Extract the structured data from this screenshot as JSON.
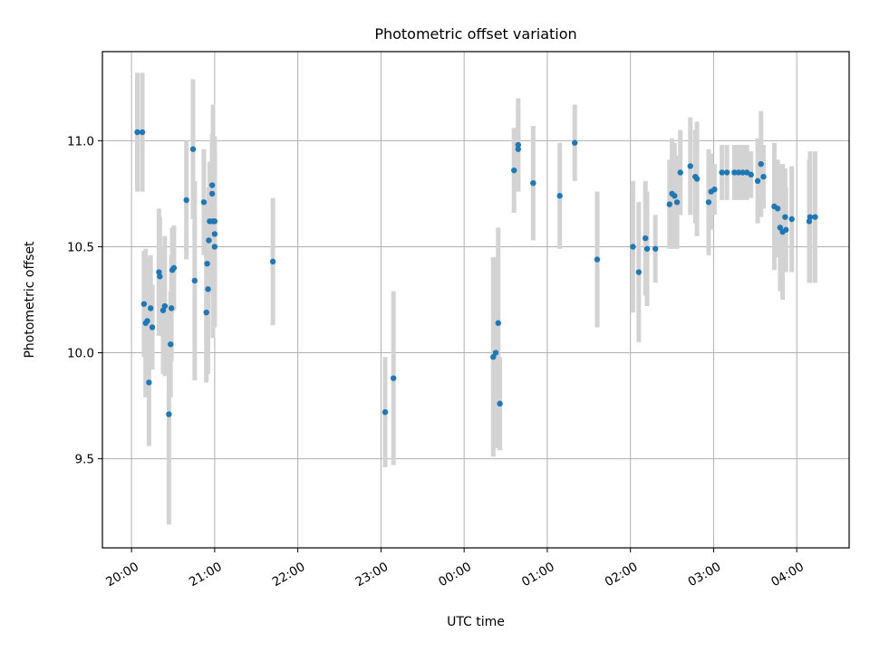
{
  "chart_data": {
    "type": "scatter",
    "title": "Photometric offset variation",
    "xlabel": "UTC time",
    "ylabel": "Photometric offset",
    "x_unit": "UTC hour (continuing past midnight)",
    "xlim": [
      19.65,
      28.63
    ],
    "ylim": [
      9.08,
      11.42
    ],
    "grid": true,
    "x_ticks": [
      {
        "value": 20,
        "label": "20:00"
      },
      {
        "value": 21,
        "label": "21:00"
      },
      {
        "value": 22,
        "label": "22:00"
      },
      {
        "value": 23,
        "label": "23:00"
      },
      {
        "value": 24,
        "label": "00:00"
      },
      {
        "value": 25,
        "label": "01:00"
      },
      {
        "value": 26,
        "label": "02:00"
      },
      {
        "value": 27,
        "label": "03:00"
      },
      {
        "value": 28,
        "label": "04:00"
      }
    ],
    "y_ticks": [
      {
        "value": 9.5,
        "label": "9.5"
      },
      {
        "value": 10.0,
        "label": "10.0"
      },
      {
        "value": 10.5,
        "label": "10.5"
      },
      {
        "value": 11.0,
        "label": "11.0"
      }
    ],
    "marker_color": "#1f77b4",
    "errorbar_color": "#d3d3d3",
    "series": [
      {
        "points": [
          [
            20.07,
            11.04,
            0.28
          ],
          [
            20.13,
            11.04,
            0.28
          ],
          [
            20.15,
            10.23,
            0.25
          ],
          [
            20.17,
            10.14,
            0.35
          ],
          [
            20.19,
            10.15,
            0.3
          ],
          [
            20.21,
            9.86,
            0.3
          ],
          [
            20.23,
            10.21,
            0.25
          ],
          [
            20.25,
            10.12,
            0.2
          ],
          [
            20.33,
            10.38,
            0.3
          ],
          [
            20.34,
            10.36,
            0.28
          ],
          [
            20.38,
            10.2,
            0.3
          ],
          [
            20.4,
            10.22,
            0.33
          ],
          [
            20.45,
            9.71,
            0.52
          ],
          [
            20.47,
            10.04,
            0.25
          ],
          [
            20.48,
            10.21,
            0.25
          ],
          [
            20.49,
            10.39,
            0.2
          ],
          [
            20.51,
            10.4,
            0.2
          ],
          [
            20.66,
            10.72,
            0.28
          ],
          [
            20.74,
            10.96,
            0.33
          ],
          [
            20.76,
            10.34,
            0.47
          ],
          [
            20.87,
            10.71,
            0.25
          ],
          [
            20.9,
            10.19,
            0.33
          ],
          [
            20.91,
            10.42,
            0.3
          ],
          [
            20.92,
            10.3,
            0.4
          ],
          [
            20.93,
            10.53,
            0.25
          ],
          [
            20.94,
            10.62,
            0.28
          ],
          [
            20.97,
            10.75,
            0.28
          ],
          [
            20.97,
            10.79,
            0.2
          ],
          [
            20.98,
            10.62,
            0.55
          ],
          [
            21.0,
            10.62,
            0.4
          ],
          [
            21.0,
            10.56,
            0.4
          ],
          [
            21.0,
            10.5,
            0.38
          ],
          [
            21.7,
            10.43,
            0.3
          ],
          [
            23.05,
            9.72,
            0.26
          ],
          [
            23.15,
            9.88,
            0.41
          ],
          [
            24.35,
            9.98,
            0.47
          ],
          [
            24.38,
            10.0,
            0.45
          ],
          [
            24.41,
            10.14,
            0.45
          ],
          [
            24.43,
            9.76,
            0.22
          ],
          [
            24.6,
            10.86,
            0.2
          ],
          [
            24.65,
            10.98,
            0.22
          ],
          [
            24.65,
            10.96,
            0.2
          ],
          [
            24.83,
            10.8,
            0.27
          ],
          [
            25.15,
            10.74,
            0.25
          ],
          [
            25.33,
            10.99,
            0.18
          ],
          [
            25.6,
            10.44,
            0.32
          ],
          [
            26.03,
            10.5,
            0.31
          ],
          [
            26.1,
            10.38,
            0.33
          ],
          [
            26.18,
            10.54,
            0.27
          ],
          [
            26.2,
            10.49,
            0.27
          ],
          [
            26.3,
            10.49,
            0.16
          ],
          [
            26.47,
            10.7,
            0.21
          ],
          [
            26.5,
            10.75,
            0.26
          ],
          [
            26.53,
            10.74,
            0.25
          ],
          [
            26.56,
            10.71,
            0.22
          ],
          [
            26.6,
            10.85,
            0.2
          ],
          [
            26.72,
            10.88,
            0.23
          ],
          [
            26.78,
            10.83,
            0.22
          ],
          [
            26.8,
            10.82,
            0.27
          ],
          [
            26.94,
            10.71,
            0.25
          ],
          [
            26.97,
            10.76,
            0.18
          ],
          [
            27.01,
            10.77,
            0.12
          ],
          [
            27.1,
            10.85,
            0.13
          ],
          [
            27.16,
            10.85,
            0.13
          ],
          [
            27.25,
            10.85,
            0.13
          ],
          [
            27.3,
            10.85,
            0.13
          ],
          [
            27.35,
            10.85,
            0.13
          ],
          [
            27.4,
            10.85,
            0.13
          ],
          [
            27.45,
            10.84,
            0.11
          ],
          [
            27.53,
            10.81,
            0.2
          ],
          [
            27.57,
            10.89,
            0.25
          ],
          [
            27.6,
            10.83,
            0.15
          ],
          [
            27.73,
            10.69,
            0.3
          ],
          [
            27.77,
            10.68,
            0.23
          ],
          [
            27.8,
            10.59,
            0.3
          ],
          [
            27.83,
            10.57,
            0.32
          ],
          [
            27.86,
            10.64,
            0.23
          ],
          [
            27.87,
            10.58,
            0.2
          ],
          [
            27.94,
            10.63,
            0.25
          ],
          [
            28.15,
            10.62,
            0.29
          ],
          [
            28.16,
            10.64,
            0.31
          ],
          [
            28.22,
            10.64,
            0.31
          ]
        ]
      }
    ]
  }
}
